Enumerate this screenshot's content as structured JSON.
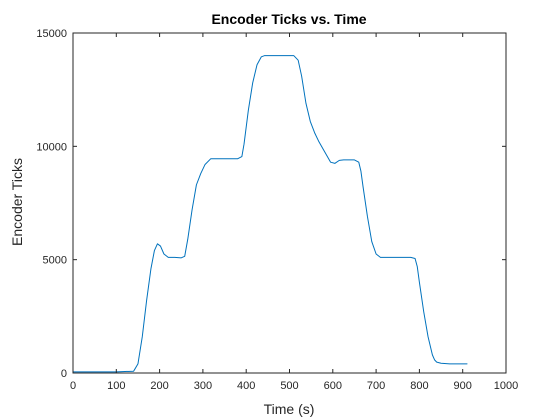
{
  "chart_data": {
    "type": "line",
    "title": "Encoder Ticks vs. Time",
    "xlabel": "Time (s)",
    "ylabel": "Encoder Ticks",
    "xlim": [
      0,
      1000
    ],
    "ylim": [
      0,
      15000
    ],
    "x_ticks": [
      0,
      100,
      200,
      300,
      400,
      500,
      600,
      700,
      800,
      900,
      1000
    ],
    "y_ticks": [
      0,
      5000,
      10000,
      15000
    ],
    "grid": false,
    "box": true,
    "series": [
      {
        "color": "#0072BD",
        "x": [
          0,
          100,
          140,
          150,
          160,
          170,
          180,
          188,
          195,
          202,
          210,
          220,
          235,
          250,
          258,
          265,
          275,
          285,
          295,
          305,
          318,
          325,
          340,
          380,
          390,
          395,
          405,
          415,
          425,
          435,
          442,
          450,
          480,
          510,
          520,
          528,
          538,
          548,
          558,
          568,
          580,
          595,
          605,
          615,
          625,
          650,
          660,
          665,
          670,
          680,
          690,
          700,
          710,
          720,
          730,
          750,
          780,
          790,
          795,
          800,
          810,
          820,
          830,
          835,
          840,
          850,
          870,
          910
        ],
        "y": [
          50,
          50,
          80,
          400,
          1600,
          3200,
          4600,
          5400,
          5700,
          5600,
          5250,
          5100,
          5100,
          5080,
          5150,
          5900,
          7200,
          8300,
          8800,
          9200,
          9450,
          9450,
          9450,
          9450,
          9550,
          10100,
          11600,
          12800,
          13600,
          13950,
          14000,
          14000,
          14000,
          14000,
          13800,
          13100,
          11900,
          11100,
          10600,
          10200,
          9800,
          9300,
          9250,
          9380,
          9400,
          9400,
          9300,
          8900,
          8200,
          6900,
          5800,
          5250,
          5100,
          5100,
          5100,
          5100,
          5100,
          5050,
          4700,
          4000,
          2700,
          1600,
          800,
          580,
          480,
          430,
          400,
          400
        ]
      }
    ]
  }
}
